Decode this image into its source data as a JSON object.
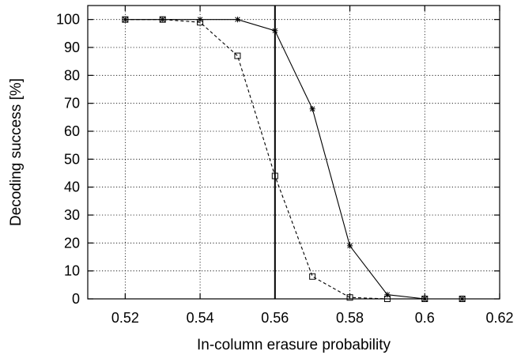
{
  "chart_data": {
    "type": "line",
    "title": "",
    "xlabel": "In-column erasure probability",
    "ylabel": "Decoding success [%]",
    "xlim": [
      0.51,
      0.62
    ],
    "ylim": [
      0,
      105
    ],
    "xticks": [
      0.52,
      0.54,
      0.56,
      0.58,
      0.6,
      0.62
    ],
    "xtick_labels": [
      "0.52",
      "0.54",
      "0.56",
      "0.58",
      "0.6",
      "0.62"
    ],
    "yticks": [
      0,
      10,
      20,
      30,
      40,
      50,
      60,
      70,
      80,
      90,
      100
    ],
    "ytick_labels": [
      "0",
      "10",
      "20",
      "30",
      "40",
      "50",
      "60",
      "70",
      "80",
      "90",
      "100"
    ],
    "grid": true,
    "legend": "none",
    "vertical_line": {
      "x": 0.56
    },
    "series": [
      {
        "marker": "star",
        "line_style": "solid",
        "color": "#000000",
        "x": [
          0.52,
          0.53,
          0.54,
          0.55,
          0.56,
          0.57,
          0.58,
          0.59,
          0.6,
          0.61
        ],
        "y": [
          100,
          100,
          100,
          100,
          96,
          68,
          19,
          1.5,
          0,
          0
        ]
      },
      {
        "marker": "square",
        "line_style": "dashed",
        "color": "#000000",
        "x": [
          0.52,
          0.53,
          0.54,
          0.55,
          0.56,
          0.57,
          0.58,
          0.59,
          0.6,
          0.61
        ],
        "y": [
          100,
          100,
          99,
          87,
          44,
          8,
          0.5,
          0,
          0,
          0
        ]
      }
    ]
  }
}
